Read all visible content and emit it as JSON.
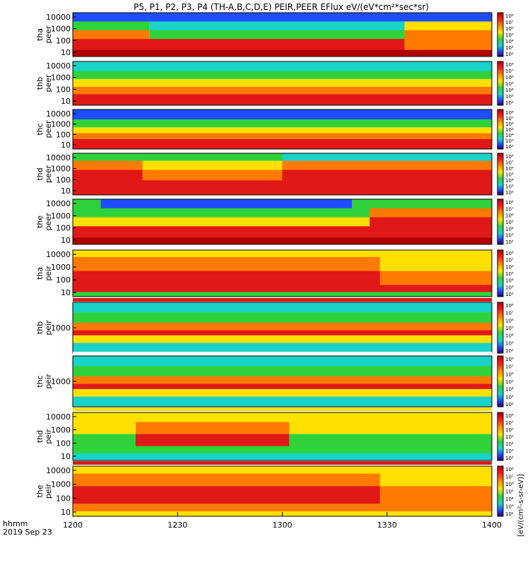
{
  "chart_data": {
    "type": "heatmap",
    "title": "P5, P1, P2, P3, P4 (TH-A,B,C,D,E) PEIR,PEER EFlux eV/(eV*cm²*sec*sr)",
    "x_ticks": [
      "1200",
      "1230",
      "1300",
      "1330",
      "1400"
    ],
    "x_tick_values": [
      0,
      30,
      60,
      90,
      120
    ],
    "x_range": [
      0,
      120
    ],
    "x_label_lines": [
      "hhmm",
      "2019 Sep 23"
    ],
    "colorbar_ticks": [
      "10⁸",
      "10⁷",
      "10⁶",
      "10⁵",
      "10⁴",
      "10³",
      "10²"
    ],
    "colorbar_label": "[eV/(cm²-s-sr-eV)]",
    "colors": {
      "dark_red": "#b00000",
      "red": "#e01818",
      "orange": "#ff7a00",
      "yellow": "#ffe000",
      "green": "#2fd23a",
      "cyan": "#19d2c8",
      "blue": "#1e4dff",
      "black": "#000000"
    },
    "panels": [
      {
        "id": "tha-peer",
        "ylabel": [
          "tha",
          "peer"
        ],
        "yticks": [
          "10000",
          "1000",
          "100",
          "10"
        ],
        "yscale": "log",
        "bands": [
          {
            "frac": 0.2,
            "segments": [
              [
                0,
                120,
                "blue"
              ]
            ]
          },
          {
            "frac": 0.2,
            "segments": [
              [
                0,
                22,
                "green"
              ],
              [
                22,
                95,
                "cyan"
              ],
              [
                95,
                120,
                "yellow"
              ]
            ]
          },
          {
            "frac": 0.2,
            "segments": [
              [
                0,
                22,
                "orange"
              ],
              [
                22,
                95,
                "green"
              ],
              [
                95,
                120,
                "orange"
              ]
            ]
          },
          {
            "frac": 0.25,
            "segments": [
              [
                0,
                95,
                "red"
              ],
              [
                95,
                120,
                "orange"
              ]
            ]
          },
          {
            "frac": 0.15,
            "segments": [
              [
                0,
                120,
                "dark_red"
              ]
            ]
          }
        ]
      },
      {
        "id": "thb-peer",
        "ylabel": [
          "thb",
          "peer"
        ],
        "yticks": [
          "10000",
          "1000",
          "100",
          "10"
        ],
        "yscale": "log",
        "bands": [
          {
            "frac": 0.22,
            "segments": [
              [
                0,
                120,
                "cyan"
              ]
            ]
          },
          {
            "frac": 0.18,
            "segments": [
              [
                0,
                120,
                "green"
              ]
            ]
          },
          {
            "frac": 0.18,
            "segments": [
              [
                0,
                120,
                "yellow"
              ]
            ]
          },
          {
            "frac": 0.17,
            "segments": [
              [
                0,
                120,
                "orange"
              ]
            ]
          },
          {
            "frac": 0.25,
            "segments": [
              [
                0,
                120,
                "red"
              ]
            ]
          }
        ]
      },
      {
        "id": "thc-peer",
        "ylabel": [
          "thc",
          "peer"
        ],
        "yticks": [
          "10000",
          "1000",
          "100",
          "10"
        ],
        "yscale": "log",
        "bands": [
          {
            "frac": 0.25,
            "segments": [
              [
                0,
                120,
                "blue"
              ]
            ]
          },
          {
            "frac": 0.2,
            "segments": [
              [
                0,
                120,
                "green"
              ]
            ]
          },
          {
            "frac": 0.15,
            "segments": [
              [
                0,
                120,
                "yellow"
              ]
            ]
          },
          {
            "frac": 0.15,
            "segments": [
              [
                0,
                120,
                "orange"
              ]
            ]
          },
          {
            "frac": 0.25,
            "segments": [
              [
                0,
                120,
                "red"
              ]
            ]
          }
        ]
      },
      {
        "id": "thd-peer",
        "ylabel": [
          "thd",
          "peer"
        ],
        "yticks": [
          "10000",
          "1000",
          "100",
          "10"
        ],
        "yscale": "log",
        "bands": [
          {
            "frac": 0.18,
            "segments": [
              [
                0,
                60,
                "green"
              ],
              [
                60,
                120,
                "cyan"
              ]
            ]
          },
          {
            "frac": 0.22,
            "segments": [
              [
                0,
                20,
                "orange"
              ],
              [
                20,
                60,
                "yellow"
              ],
              [
                60,
                120,
                "orange"
              ]
            ]
          },
          {
            "frac": 0.25,
            "segments": [
              [
                0,
                20,
                "red"
              ],
              [
                20,
                60,
                "orange"
              ],
              [
                60,
                120,
                "red"
              ]
            ]
          },
          {
            "frac": 0.35,
            "segments": [
              [
                0,
                120,
                "red"
              ]
            ]
          }
        ]
      },
      {
        "id": "the-peer",
        "ylabel": [
          "the",
          "peer"
        ],
        "yticks": [
          "10000",
          "1000",
          "100",
          "10"
        ],
        "yscale": "log",
        "bands": [
          {
            "frac": 0.2,
            "segments": [
              [
                0,
                8,
                "green"
              ],
              [
                8,
                80,
                "blue"
              ],
              [
                80,
                120,
                "green"
              ]
            ]
          },
          {
            "frac": 0.2,
            "segments": [
              [
                0,
                85,
                "green"
              ],
              [
                85,
                120,
                "orange"
              ]
            ]
          },
          {
            "frac": 0.2,
            "segments": [
              [
                0,
                85,
                "yellow"
              ],
              [
                85,
                120,
                "red"
              ]
            ]
          },
          {
            "frac": 0.25,
            "segments": [
              [
                0,
                120,
                "red"
              ]
            ]
          },
          {
            "frac": 0.15,
            "segments": [
              [
                0,
                120,
                "dark_red"
              ]
            ]
          }
        ]
      },
      {
        "id": "tha-peir",
        "ylabel": [
          "tha",
          "peir"
        ],
        "yticks": [
          "10000",
          "1000",
          "100",
          "10"
        ],
        "yscale": "log",
        "bands": [
          {
            "frac": 0.15,
            "segments": [
              [
                0,
                120,
                "yellow"
              ]
            ]
          },
          {
            "frac": 0.3,
            "segments": [
              [
                0,
                88,
                "orange"
              ],
              [
                88,
                120,
                "yellow"
              ]
            ]
          },
          {
            "frac": 0.3,
            "segments": [
              [
                0,
                88,
                "red"
              ],
              [
                88,
                120,
                "orange"
              ]
            ]
          },
          {
            "frac": 0.15,
            "segments": [
              [
                0,
                120,
                "red"
              ]
            ]
          },
          {
            "frac": 0.1,
            "segments": [
              [
                0,
                120,
                "green"
              ]
            ]
          }
        ]
      },
      {
        "id": "thb-peir",
        "ylabel": [
          "thb",
          "peir"
        ],
        "yticks": [
          "1000"
        ],
        "yscale": "log",
        "bands": [
          {
            "frac": 0.2,
            "segments": [
              [
                0,
                120,
                "cyan"
              ]
            ]
          },
          {
            "frac": 0.2,
            "segments": [
              [
                0,
                120,
                "green"
              ]
            ]
          },
          {
            "frac": 0.15,
            "segments": [
              [
                0,
                120,
                "orange"
              ]
            ]
          },
          {
            "frac": 0.1,
            "segments": [
              [
                0,
                120,
                "red"
              ]
            ]
          },
          {
            "frac": 0.15,
            "segments": [
              [
                0,
                120,
                "yellow"
              ]
            ]
          },
          {
            "frac": 0.2,
            "segments": [
              [
                0,
                120,
                "cyan"
              ]
            ]
          }
        ]
      },
      {
        "id": "thc-peir",
        "ylabel": [
          "thc",
          "peir"
        ],
        "yticks": [
          "1000"
        ],
        "yscale": "log",
        "bands": [
          {
            "frac": 0.2,
            "segments": [
              [
                0,
                120,
                "cyan"
              ]
            ]
          },
          {
            "frac": 0.2,
            "segments": [
              [
                0,
                120,
                "green"
              ]
            ]
          },
          {
            "frac": 0.15,
            "segments": [
              [
                0,
                120,
                "orange"
              ]
            ]
          },
          {
            "frac": 0.1,
            "segments": [
              [
                0,
                120,
                "red"
              ]
            ]
          },
          {
            "frac": 0.15,
            "segments": [
              [
                0,
                120,
                "yellow"
              ]
            ]
          },
          {
            "frac": 0.2,
            "segments": [
              [
                0,
                120,
                "cyan"
              ]
            ]
          }
        ]
      },
      {
        "id": "thd-peir",
        "ylabel": [
          "thd",
          "peir"
        ],
        "yticks": [
          "10000",
          "1000",
          "100",
          "10"
        ],
        "yscale": "log",
        "bands": [
          {
            "frac": 0.2,
            "segments": [
              [
                0,
                120,
                "yellow"
              ]
            ]
          },
          {
            "frac": 0.25,
            "segments": [
              [
                0,
                18,
                "yellow"
              ],
              [
                18,
                62,
                "orange"
              ],
              [
                62,
                120,
                "yellow"
              ]
            ]
          },
          {
            "frac": 0.25,
            "segments": [
              [
                0,
                18,
                "green"
              ],
              [
                18,
                62,
                "red"
              ],
              [
                62,
                120,
                "green"
              ]
            ]
          },
          {
            "frac": 0.15,
            "segments": [
              [
                0,
                120,
                "green"
              ]
            ]
          },
          {
            "frac": 0.15,
            "segments": [
              [
                0,
                120,
                "cyan"
              ]
            ]
          }
        ]
      },
      {
        "id": "the-peir",
        "ylabel": [
          "the",
          "peir"
        ],
        "yticks": [
          "10000",
          "1000",
          "100",
          "10"
        ],
        "yscale": "log",
        "bands": [
          {
            "frac": 0.15,
            "segments": [
              [
                0,
                120,
                "yellow"
              ]
            ]
          },
          {
            "frac": 0.25,
            "segments": [
              [
                0,
                88,
                "orange"
              ],
              [
                88,
                120,
                "yellow"
              ]
            ]
          },
          {
            "frac": 0.35,
            "segments": [
              [
                0,
                88,
                "red"
              ],
              [
                88,
                120,
                "orange"
              ]
            ]
          },
          {
            "frac": 0.15,
            "segments": [
              [
                0,
                120,
                "orange"
              ]
            ]
          },
          {
            "frac": 0.1,
            "segments": [
              [
                0,
                120,
                "yellow"
              ]
            ]
          }
        ]
      }
    ]
  }
}
